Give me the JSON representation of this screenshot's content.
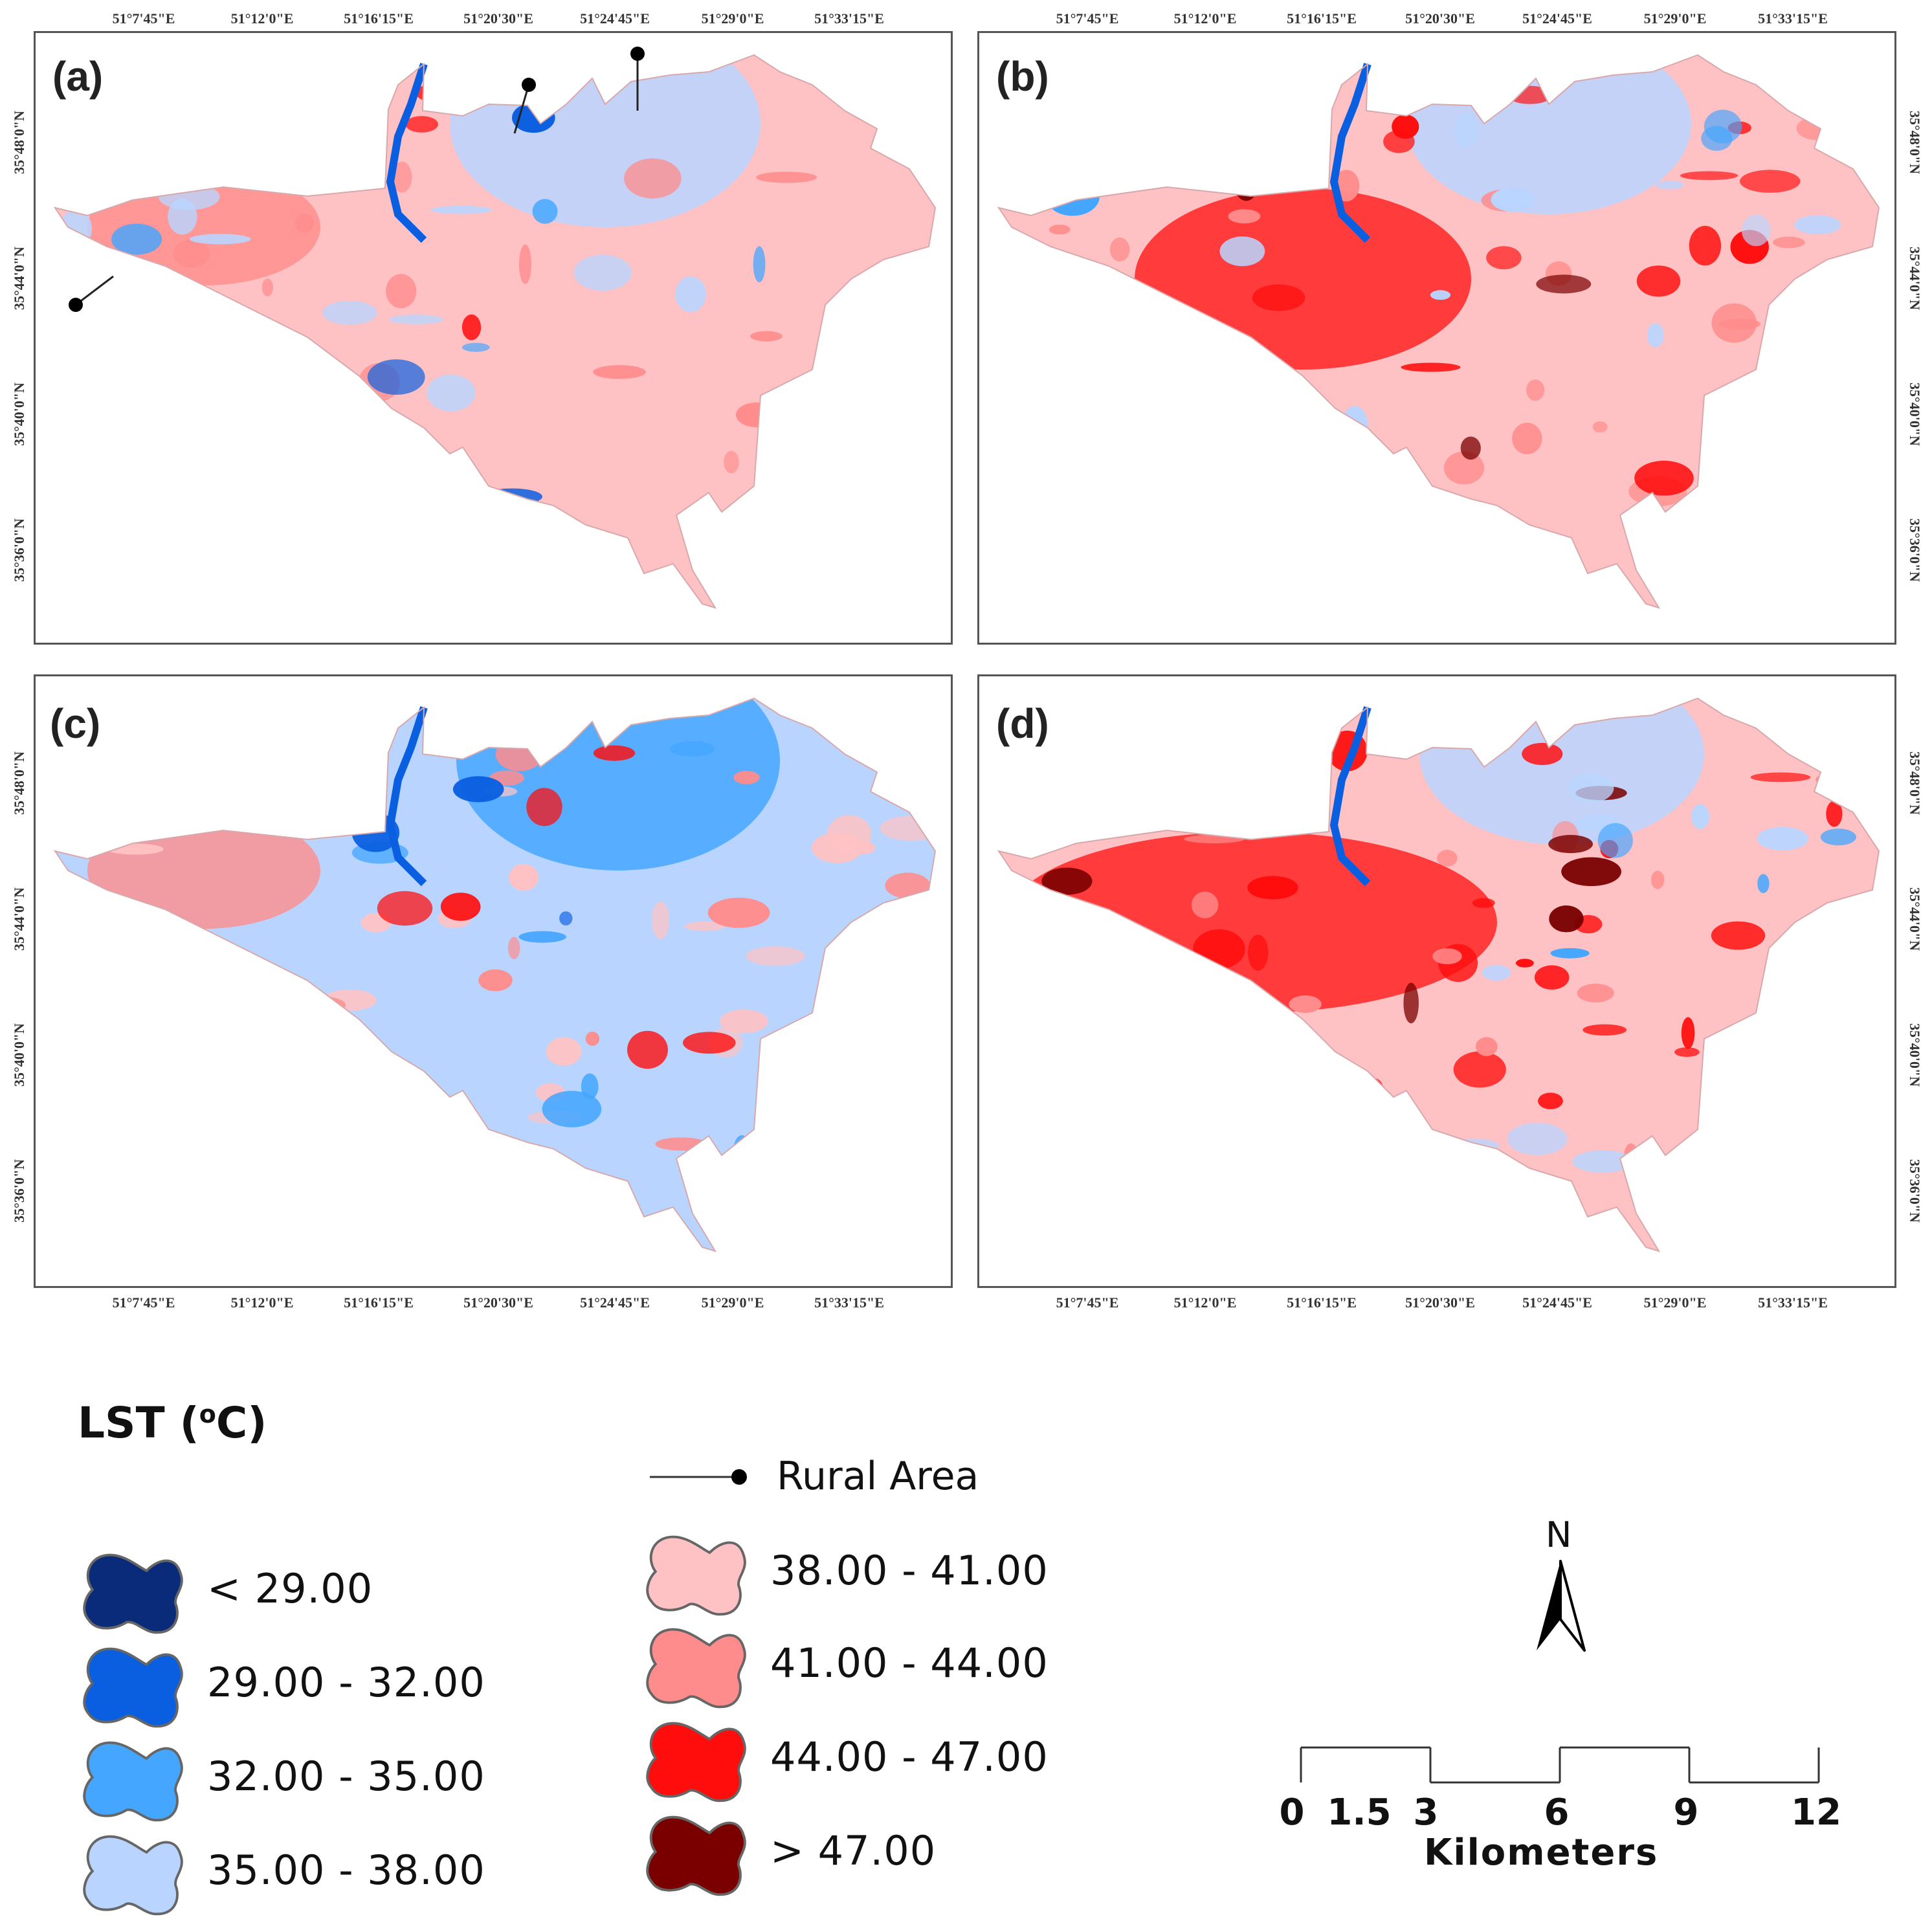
{
  "figure": {
    "panels": [
      {
        "id": "a",
        "label": "(a)",
        "scenario_palette": [
          "#c0d8ff",
          "#ffbfc2",
          "#ff8a8a",
          "#ff1818",
          "#1a82ff"
        ]
      },
      {
        "id": "b",
        "label": "(b)"
      },
      {
        "id": "c",
        "label": "(c)"
      },
      {
        "id": "d",
        "label": "(d)"
      }
    ],
    "longitude_ticks": [
      "51°7'45\"E",
      "51°12'0\"E",
      "51°16'15\"E",
      "51°20'30\"E",
      "51°24'45\"E",
      "51°29'0\"E",
      "51°33'15\"E"
    ],
    "latitude_ticks": [
      "35°48'0\"N",
      "35°44'0\"N",
      "35°40'0\"N",
      "35°36'0\"N"
    ]
  },
  "legend": {
    "title": "LST (",
    "title_sup": "o",
    "title_end": "C)",
    "classes": [
      {
        "label": "< 29.00",
        "color": "#0a2a7a"
      },
      {
        "label": "29.00 - 32.00",
        "color": "#0a5fe0"
      },
      {
        "label": "32.00 - 35.00",
        "color": "#45a6ff"
      },
      {
        "label": "35.00 - 38.00",
        "color": "#b9d5ff"
      },
      {
        "label": "38.00 - 41.00",
        "color": "#ffc2c4"
      },
      {
        "label": "41.00 - 44.00",
        "color": "#ff8c8c"
      },
      {
        "label": "44.00 - 47.00",
        "color": "#ff0d0d"
      },
      {
        "label": "> 47.00",
        "color": "#7a0000"
      }
    ],
    "rural_area_label": "Rural Area"
  },
  "north_arrow": {
    "label": "N"
  },
  "scale_bar": {
    "ticks": [
      "0",
      "1.5",
      "3",
      "6",
      "9",
      "12"
    ],
    "values_km": [
      0,
      1.5,
      3,
      6,
      9,
      12
    ],
    "unit": "Kilometers"
  }
}
